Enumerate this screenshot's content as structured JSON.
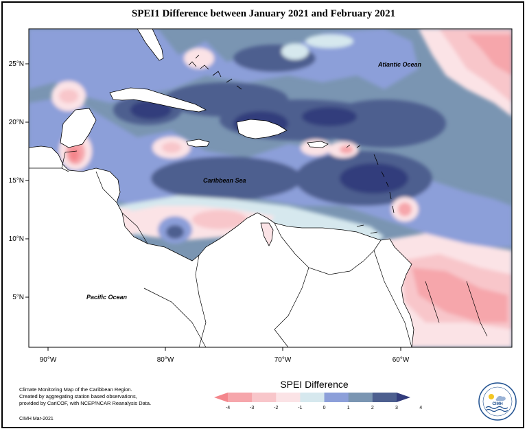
{
  "title": "SPEI1 Difference between January 2021 and February 2021",
  "lon_ticks": [
    "90°W",
    "80°W",
    "70°W",
    "60°W"
  ],
  "lat_ticks": [
    "25°N",
    "20°N",
    "15°N",
    "10°N",
    "5°N"
  ],
  "labels": {
    "atlantic": "Atlantic Ocean",
    "caribbean": "Caribbean Sea",
    "pacific": "Pacific Ocean"
  },
  "legend": {
    "title": "SPEI Difference",
    "ticks": [
      "-4",
      "-3",
      "-2",
      "-1",
      "0",
      "1",
      "2",
      "3",
      "4"
    ],
    "colors": [
      "#f4868c",
      "#f6a6ab",
      "#f8c6ca",
      "#fbe3e6",
      "#d6e8ee",
      "#8c9fd9",
      "#7a95b2",
      "#4d5f8f",
      "#323c7c"
    ]
  },
  "footer": {
    "line1": "Climate Monitoring Map of the Caribbean Region.",
    "line2": "Created by aggregating station based observations,",
    "line3": "provided by CariCOF, with NCEP/NCAR Reanalysis Data.",
    "credit": "CIMH Mar-2021"
  },
  "logo_text": "CIMH"
}
